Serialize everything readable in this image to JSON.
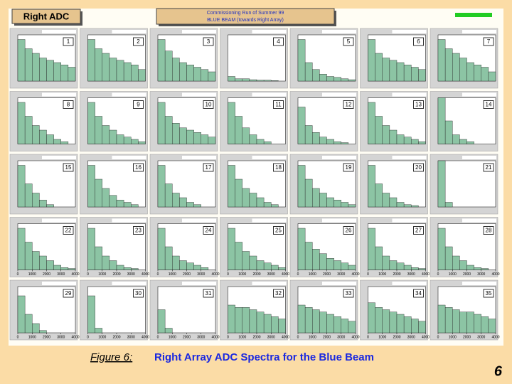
{
  "header": {
    "title": "Right ADC",
    "subtitle": [
      "Commissioning Run of Summer 99",
      "BLUE BEAM (towards Right Array)"
    ]
  },
  "figure": {
    "label": "Figure 6:",
    "caption": "Right Array ADC Spectra for the Blue Beam"
  },
  "page_number": "6",
  "chart_data": [
    {
      "type": "histogram",
      "title": "1",
      "values": [
        9,
        7,
        6,
        5,
        4.5,
        4,
        3.5,
        3
      ],
      "ylim": [
        0,
        10
      ],
      "color": "#8cc4a4"
    },
    {
      "type": "histogram",
      "title": "2",
      "values": [
        9,
        7,
        6,
        5,
        4.5,
        4,
        3.5,
        2.5
      ],
      "ylim": [
        0,
        10
      ],
      "color": "#8cc4a4"
    },
    {
      "type": "histogram",
      "title": "3",
      "values": [
        9,
        6.5,
        5,
        4,
        3.5,
        3,
        2.5,
        2
      ],
      "ylim": [
        0,
        10
      ],
      "color": "#8cc4a4"
    },
    {
      "type": "histogram",
      "title": "4",
      "values": [
        1,
        0.5,
        0.5,
        0.3,
        0.2,
        0.2,
        0.1,
        0
      ],
      "ylim": [
        0,
        10
      ],
      "color": "#8cc4a4"
    },
    {
      "type": "histogram",
      "title": "5",
      "values": [
        9,
        4,
        2.5,
        1.5,
        1,
        0.8,
        0.5,
        0.3
      ],
      "ylim": [
        0,
        10
      ],
      "color": "#8cc4a4"
    },
    {
      "type": "histogram",
      "title": "6",
      "values": [
        9,
        6,
        5,
        4.5,
        4,
        3.5,
        3,
        2.5
      ],
      "ylim": [
        0,
        10
      ],
      "color": "#8cc4a4"
    },
    {
      "type": "histogram",
      "title": "7",
      "values": [
        9,
        7,
        6,
        5,
        4,
        3.5,
        3,
        2
      ],
      "ylim": [
        0,
        10
      ],
      "color": "#8cc4a4"
    },
    {
      "type": "histogram",
      "title": "8",
      "values": [
        9,
        6,
        4,
        3,
        2,
        1,
        0.5,
        0
      ],
      "ylim": [
        0,
        10
      ],
      "color": "#8cc4a4"
    },
    {
      "type": "histogram",
      "title": "9",
      "values": [
        9,
        6,
        4,
        3,
        2,
        1.5,
        1,
        0.5
      ],
      "ylim": [
        0,
        10
      ],
      "color": "#8cc4a4"
    },
    {
      "type": "histogram",
      "title": "10",
      "values": [
        9,
        6,
        4.5,
        3.5,
        3,
        2.5,
        2,
        1.5
      ],
      "ylim": [
        0,
        10
      ],
      "color": "#8cc4a4"
    },
    {
      "type": "histogram",
      "title": "11",
      "values": [
        9,
        6,
        3.5,
        2,
        1,
        0.5,
        0,
        0
      ],
      "ylim": [
        0,
        10
      ],
      "color": "#8cc4a4"
    },
    {
      "type": "histogram",
      "title": "12",
      "values": [
        8,
        4,
        2.5,
        1.5,
        1,
        0.5,
        0.3,
        0
      ],
      "ylim": [
        0,
        10
      ],
      "color": "#8cc4a4"
    },
    {
      "type": "histogram",
      "title": "13",
      "values": [
        9,
        6,
        4,
        3,
        2,
        1.5,
        1,
        0.5
      ],
      "ylim": [
        0,
        10
      ],
      "color": "#8cc4a4"
    },
    {
      "type": "histogram",
      "title": "14",
      "values": [
        10,
        5,
        2,
        1,
        0.5,
        0,
        0,
        0
      ],
      "ylim": [
        0,
        10
      ],
      "color": "#8cc4a4"
    },
    {
      "type": "histogram",
      "title": "15",
      "values": [
        9,
        5,
        3,
        1.5,
        0.5,
        0,
        0,
        0
      ],
      "ylim": [
        0,
        10
      ],
      "color": "#8cc4a4"
    },
    {
      "type": "histogram",
      "title": "16",
      "values": [
        9,
        6,
        4,
        2.5,
        1.5,
        1,
        0.5,
        0
      ],
      "ylim": [
        0,
        10
      ],
      "color": "#8cc4a4"
    },
    {
      "type": "histogram",
      "title": "17",
      "values": [
        9,
        5,
        3,
        2,
        1,
        0.5,
        0,
        0
      ],
      "ylim": [
        0,
        10
      ],
      "color": "#8cc4a4"
    },
    {
      "type": "histogram",
      "title": "18",
      "values": [
        9,
        6,
        4,
        3,
        2,
        1,
        0.5,
        0
      ],
      "ylim": [
        0,
        10
      ],
      "color": "#8cc4a4"
    },
    {
      "type": "histogram",
      "title": "19",
      "values": [
        9,
        6,
        4,
        3,
        2,
        1.5,
        1,
        0.5
      ],
      "ylim": [
        0,
        10
      ],
      "color": "#8cc4a4"
    },
    {
      "type": "histogram",
      "title": "20",
      "values": [
        9,
        5,
        3,
        2,
        1,
        0.5,
        0.3,
        0
      ],
      "ylim": [
        0,
        10
      ],
      "color": "#8cc4a4"
    },
    {
      "type": "histogram",
      "title": "21",
      "values": [
        10,
        1,
        0,
        0,
        0,
        0,
        0,
        0
      ],
      "ylim": [
        0,
        10
      ],
      "color": "#8cc4a4"
    },
    {
      "type": "histogram",
      "title": "22",
      "values": [
        9,
        6,
        4,
        3,
        2,
        1,
        0.5,
        0.3
      ],
      "ylim": [
        0,
        10
      ],
      "xlim": [
        0,
        4000
      ],
      "xticks": [
        0,
        1000,
        2000,
        3000,
        4000
      ],
      "color": "#8cc4a4"
    },
    {
      "type": "histogram",
      "title": "23",
      "values": [
        9,
        5,
        3,
        2,
        1,
        0.5,
        0.3,
        0
      ],
      "ylim": [
        0,
        10
      ],
      "xlim": [
        0,
        4000
      ],
      "xticks": [
        0,
        1000,
        2000,
        3000,
        4000
      ],
      "color": "#8cc4a4"
    },
    {
      "type": "histogram",
      "title": "24",
      "values": [
        9,
        5,
        3,
        2,
        1.5,
        1,
        0.5,
        0
      ],
      "ylim": [
        0,
        10
      ],
      "xlim": [
        0,
        4000
      ],
      "xticks": [
        0,
        1000,
        2000,
        3000,
        4000
      ],
      "color": "#8cc4a4"
    },
    {
      "type": "histogram",
      "title": "25",
      "values": [
        9,
        6,
        4,
        3,
        2,
        1.5,
        1,
        0.5
      ],
      "ylim": [
        0,
        10
      ],
      "xlim": [
        0,
        4000
      ],
      "xticks": [
        0,
        1000,
        2000,
        3000,
        4000
      ],
      "color": "#8cc4a4"
    },
    {
      "type": "histogram",
      "title": "26",
      "values": [
        9,
        6,
        4.5,
        3.5,
        2.5,
        2,
        1.5,
        1
      ],
      "ylim": [
        0,
        10
      ],
      "xlim": [
        0,
        4000
      ],
      "xticks": [
        0,
        1000,
        2000,
        3000,
        4000
      ],
      "color": "#8cc4a4"
    },
    {
      "type": "histogram",
      "title": "27",
      "values": [
        9,
        5,
        3,
        2,
        1.5,
        1,
        0.5,
        0.3
      ],
      "ylim": [
        0,
        10
      ],
      "xlim": [
        0,
        4000
      ],
      "xticks": [
        0,
        1000,
        2000,
        3000,
        4000
      ],
      "color": "#8cc4a4"
    },
    {
      "type": "histogram",
      "title": "28",
      "values": [
        9,
        5,
        3,
        2,
        1,
        0.5,
        0.3,
        0
      ],
      "ylim": [
        0,
        10
      ],
      "xlim": [
        0,
        4000
      ],
      "xticks": [
        0,
        1000,
        2000,
        3000,
        4000
      ],
      "color": "#8cc4a4"
    },
    {
      "type": "histogram",
      "title": "29",
      "values": [
        8,
        4,
        2,
        0.5,
        0,
        0,
        0,
        0
      ],
      "ylim": [
        0,
        10
      ],
      "xlim": [
        0,
        4000
      ],
      "xticks": [
        0,
        1000,
        2000,
        3000,
        4000
      ],
      "color": "#8cc4a4"
    },
    {
      "type": "histogram",
      "title": "30",
      "values": [
        8,
        1,
        0,
        0,
        0,
        0,
        0,
        0
      ],
      "ylim": [
        0,
        10
      ],
      "xlim": [
        0,
        4000
      ],
      "xticks": [
        0,
        1000,
        2000,
        3000,
        4000
      ],
      "color": "#8cc4a4"
    },
    {
      "type": "histogram",
      "title": "31",
      "values": [
        5,
        1,
        0,
        0,
        0,
        0,
        0,
        0
      ],
      "ylim": [
        0,
        10
      ],
      "xlim": [
        0,
        4000
      ],
      "xticks": [
        0,
        1000,
        2000,
        3000,
        4000
      ],
      "color": "#8cc4a4"
    },
    {
      "type": "histogram",
      "title": "32",
      "values": [
        6,
        5.5,
        5.5,
        5,
        4.5,
        4,
        3.5,
        3
      ],
      "ylim": [
        0,
        10
      ],
      "xlim": [
        0,
        4000
      ],
      "xticks": [
        0,
        1000,
        2000,
        3000,
        4000
      ],
      "color": "#8cc4a4"
    },
    {
      "type": "histogram",
      "title": "33",
      "values": [
        6,
        5.5,
        5,
        4.5,
        4,
        3.5,
        3,
        2.5
      ],
      "ylim": [
        0,
        10
      ],
      "xlim": [
        0,
        4000
      ],
      "xticks": [
        0,
        1000,
        2000,
        3000,
        4000
      ],
      "color": "#8cc4a4"
    },
    {
      "type": "histogram",
      "title": "34",
      "values": [
        6.5,
        5.5,
        5,
        4.5,
        4,
        3.5,
        3,
        2.5
      ],
      "ylim": [
        0,
        10
      ],
      "xlim": [
        0,
        4000
      ],
      "xticks": [
        0,
        1000,
        2000,
        3000,
        4000
      ],
      "color": "#8cc4a4"
    },
    {
      "type": "histogram",
      "title": "35",
      "values": [
        6,
        5.5,
        5,
        4.5,
        4.5,
        4,
        3.5,
        3
      ],
      "ylim": [
        0,
        10
      ],
      "xlim": [
        0,
        4000
      ],
      "xticks": [
        0,
        1000,
        2000,
        3000,
        4000
      ],
      "color": "#8cc4a4"
    }
  ]
}
